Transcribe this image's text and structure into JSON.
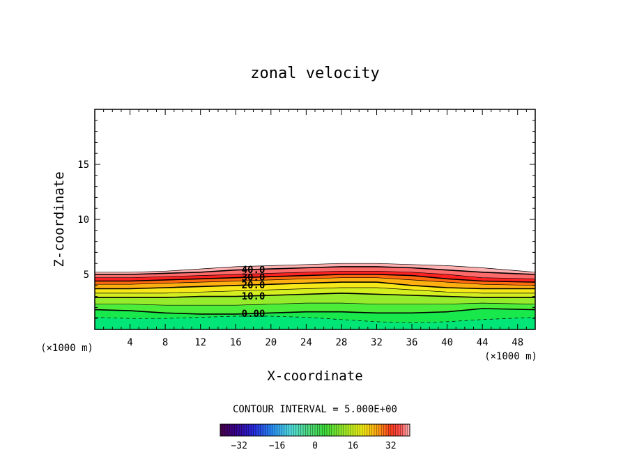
{
  "chart_data": {
    "type": "contour",
    "title": "zonal velocity",
    "xlabel": "X-coordinate",
    "ylabel": "Z-coordinate",
    "x_unit": "(×1000 m)",
    "y_unit": "(×1000 m)",
    "xlim": [
      0,
      50
    ],
    "ylim": [
      0,
      20
    ],
    "x_ticks": [
      4,
      8,
      12,
      16,
      20,
      24,
      28,
      32,
      36,
      40,
      44,
      48
    ],
    "y_ticks": [
      5,
      10,
      15
    ],
    "contour_interval_text": "CONTOUR INTERVAL = 5.000E+00",
    "contour_labels": [
      "40.0",
      "30.0",
      "20.0",
      "10.0",
      "0.00"
    ],
    "colorbar": {
      "range": [
        -40,
        40
      ],
      "ticks": [
        "-32",
        "-16",
        "0",
        "16",
        "32"
      ]
    },
    "layers": [
      {
        "value": -2,
        "color": "#00e676",
        "z": [
          1.1,
          1.0,
          1.0,
          1.1,
          1.2,
          1.2,
          1.1,
          0.9,
          0.7,
          0.6,
          0.7,
          0.9,
          1.1
        ]
      },
      {
        "value": 0,
        "color": "#18e84c",
        "z": [
          1.8,
          1.7,
          1.5,
          1.4,
          1.4,
          1.5,
          1.6,
          1.6,
          1.5,
          1.5,
          1.6,
          1.9,
          1.8
        ]
      },
      {
        "value": 5,
        "color": "#4cec3a",
        "z": [
          2.3,
          2.3,
          2.2,
          2.2,
          2.2,
          2.3,
          2.4,
          2.4,
          2.3,
          2.3,
          2.3,
          2.4,
          2.3
        ]
      },
      {
        "value": 10,
        "color": "#96ec2c",
        "z": [
          2.9,
          2.9,
          2.9,
          3.0,
          3.0,
          3.1,
          3.2,
          3.3,
          3.2,
          3.1,
          3.0,
          2.9,
          2.9
        ]
      },
      {
        "value": 15,
        "color": "#d4ee20",
        "z": [
          3.3,
          3.3,
          3.3,
          3.4,
          3.5,
          3.6,
          3.7,
          3.8,
          3.8,
          3.6,
          3.4,
          3.3,
          3.3
        ]
      },
      {
        "value": 20,
        "color": "#f7e81a",
        "z": [
          3.7,
          3.7,
          3.8,
          3.9,
          4.0,
          4.1,
          4.2,
          4.3,
          4.3,
          4.0,
          3.8,
          3.7,
          3.7
        ]
      },
      {
        "value": 25,
        "color": "#ffb010",
        "z": [
          4.1,
          4.1,
          4.2,
          4.3,
          4.4,
          4.5,
          4.6,
          4.7,
          4.7,
          4.5,
          4.3,
          4.1,
          4.0
        ]
      },
      {
        "value": 30,
        "color": "#ff6a10",
        "z": [
          4.4,
          4.4,
          4.5,
          4.6,
          4.7,
          4.8,
          4.9,
          5.0,
          5.0,
          4.9,
          4.6,
          4.4,
          4.3
        ]
      },
      {
        "value": 35,
        "color": "#ff2222",
        "z": [
          4.7,
          4.7,
          4.8,
          4.9,
          5.0,
          5.1,
          5.2,
          5.3,
          5.3,
          5.2,
          5.0,
          4.7,
          4.6
        ]
      },
      {
        "value": 40,
        "color": "#ff6a6a",
        "z": [
          5.0,
          5.0,
          5.1,
          5.2,
          5.4,
          5.5,
          5.6,
          5.7,
          5.7,
          5.6,
          5.4,
          5.2,
          5.0
        ]
      },
      {
        "value": 45,
        "color": "#ffb0b0",
        "z": [
          5.2,
          5.2,
          5.3,
          5.5,
          5.7,
          5.8,
          5.9,
          6.0,
          6.0,
          5.9,
          5.8,
          5.6,
          5.2
        ]
      }
    ],
    "layer_x": [
      0,
      4,
      8,
      12,
      16,
      20,
      24,
      28,
      32,
      36,
      40,
      44,
      50
    ]
  }
}
